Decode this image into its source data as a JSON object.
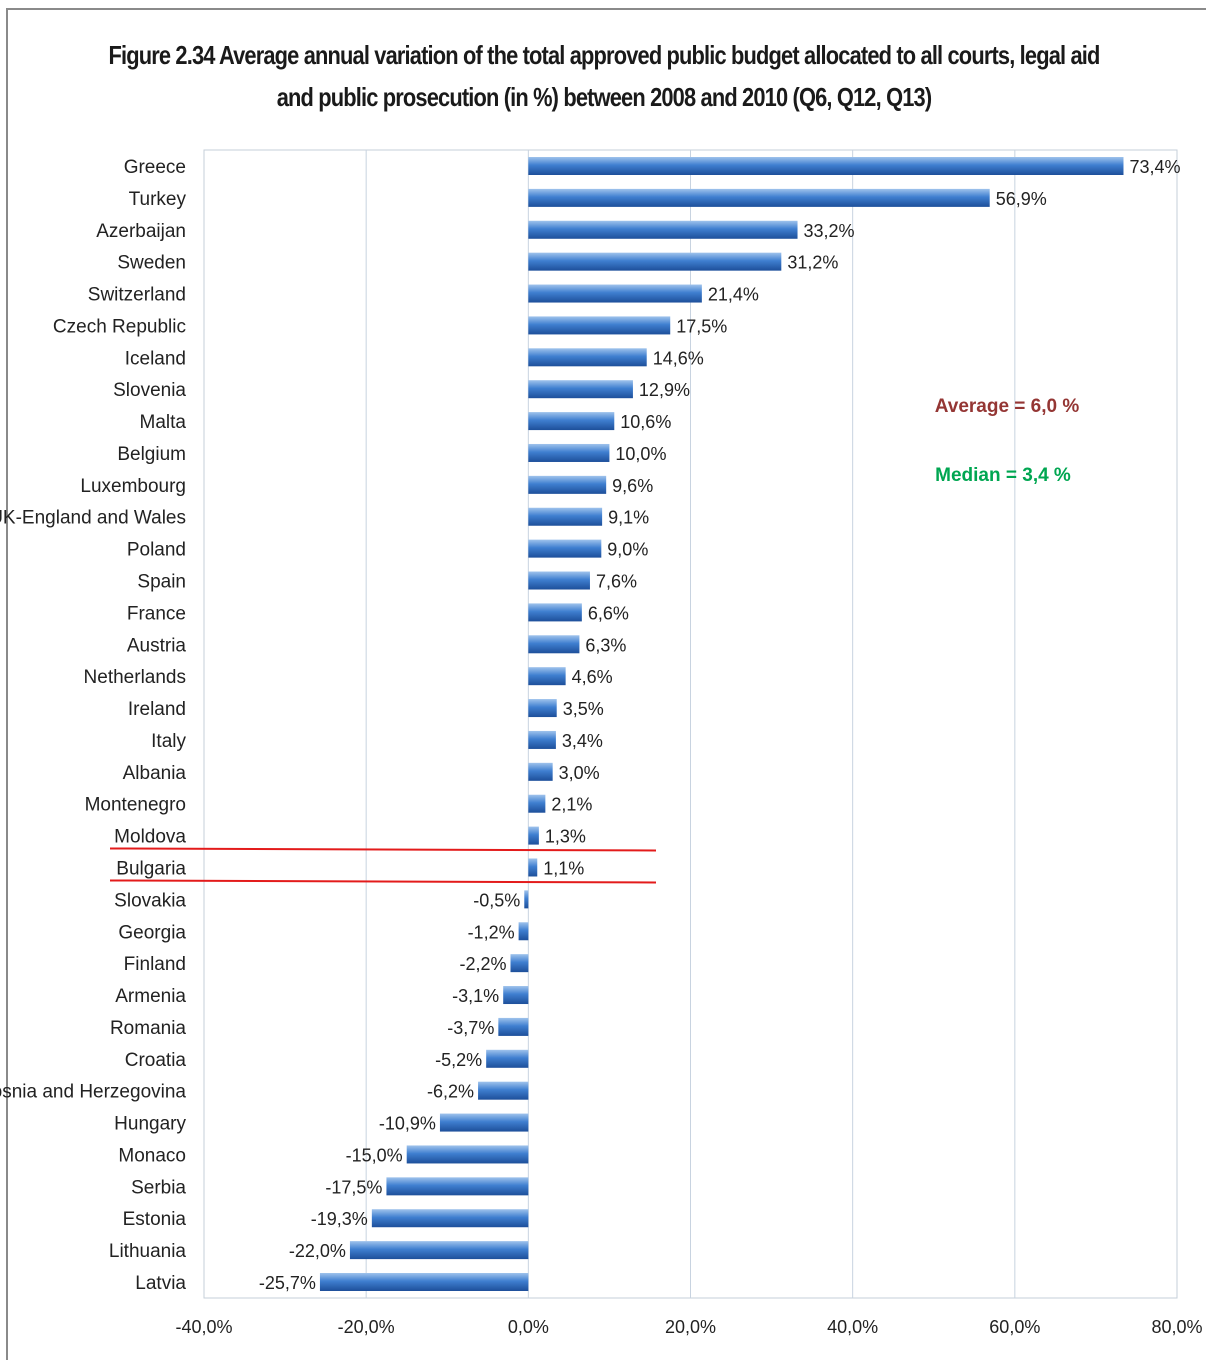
{
  "colors": {
    "bar_top": "#9fc3ec",
    "bar_mid": "#3f7fd0",
    "bar_bottom": "#1d4f9a",
    "gridline": "#c8d3e0",
    "highlight_line": "#e31b1b",
    "average_text": "#943634",
    "median_text": "#00a651"
  },
  "title_lines": [
    "Figure 2.34 Average annual variation of the total approved public budget allocated to all courts, legal aid",
    "and public prosecution (in %)  between 2008  and 2010 (Q6, Q12, Q13)"
  ],
  "annotations": {
    "average": "Average =  6,0 %",
    "median": "Median = 3,4 %"
  },
  "highlighted_category": "Bulgaria",
  "chart_data": {
    "type": "bar",
    "orientation": "horizontal",
    "title": "Figure 2.34 Average annual variation of the total approved public budget allocated to all courts, legal aid and public prosecution (in %)  between 2008  and 2010 (Q6, Q12, Q13)",
    "xlabel": "",
    "ylabel": "",
    "xlim": [
      -40,
      80
    ],
    "x_ticks": [
      -40,
      -20,
      0,
      20,
      40,
      60,
      80
    ],
    "x_tick_labels": [
      "-40,0%",
      "-20,0%",
      "0,0%",
      "20,0%",
      "40,0%",
      "60,0%",
      "80,0%"
    ],
    "grid": "vertical",
    "legend": "none",
    "categories": [
      "Greece",
      "Turkey",
      "Azerbaijan",
      "Sweden",
      "Switzerland",
      "Czech Republic",
      "Iceland",
      "Slovenia",
      "Malta",
      "Belgium",
      "Luxembourg",
      "UK-England and Wales",
      "Poland",
      "Spain",
      "France",
      "Austria",
      "Netherlands",
      "Ireland",
      "Italy",
      "Albania",
      "Montenegro",
      "Moldova",
      "Bulgaria",
      "Slovakia",
      "Georgia",
      "Finland",
      "Armenia",
      "Romania",
      "Croatia",
      "Bosnia and Herzegovina",
      "Hungary",
      "Monaco",
      "Serbia",
      "Estonia",
      "Lithuania",
      "Latvia"
    ],
    "values": [
      73.4,
      56.9,
      33.2,
      31.2,
      21.4,
      17.5,
      14.6,
      12.9,
      10.6,
      10.0,
      9.6,
      9.1,
      9.0,
      7.6,
      6.6,
      6.3,
      4.6,
      3.5,
      3.4,
      3.0,
      2.1,
      1.3,
      1.1,
      -0.5,
      -1.2,
      -2.2,
      -3.1,
      -3.7,
      -5.2,
      -6.2,
      -10.9,
      -15.0,
      -17.5,
      -19.3,
      -22.0,
      -25.7
    ],
    "value_labels": [
      "73,4%",
      "56,9%",
      "33,2%",
      "31,2%",
      "21,4%",
      "17,5%",
      "14,6%",
      "12,9%",
      "10,6%",
      "10,0%",
      "9,6%",
      "9,1%",
      "9,0%",
      "7,6%",
      "6,6%",
      "6,3%",
      "4,6%",
      "3,5%",
      "3,4%",
      "3,0%",
      "2,1%",
      "1,3%",
      "1,1%",
      "-0,5%",
      "-1,2%",
      "-2,2%",
      "-3,1%",
      "-3,7%",
      "-5,2%",
      "-6,2%",
      "-10,9%",
      "-15,0%",
      "-17,5%",
      "-19,3%",
      "-22,0%",
      "-25,7%"
    ]
  }
}
